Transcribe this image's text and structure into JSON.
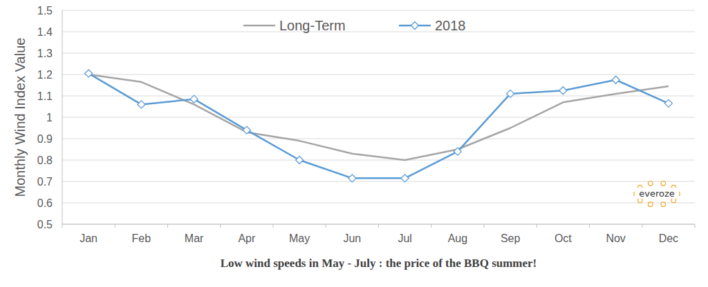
{
  "chart_data": {
    "type": "line",
    "x_label": "Low wind speeds in May - July : the price of the BBQ summer!",
    "y_label": "Monthly Wind Index Value",
    "categories": [
      "Jan",
      "Feb",
      "Mar",
      "Apr",
      "May",
      "Jun",
      "Jul",
      "Aug",
      "Sep",
      "Oct",
      "Nov",
      "Dec"
    ],
    "series": [
      {
        "name": "Long-Term",
        "color": "#a5a5a5",
        "marker": "none",
        "line_style": "solid",
        "values": [
          1.2,
          1.165,
          1.06,
          0.93,
          0.89,
          0.83,
          0.8,
          0.85,
          0.95,
          1.07,
          1.11,
          1.145
        ]
      },
      {
        "name": "2018",
        "color": "#5b9bd5",
        "marker": "diamond",
        "line_style": "solid",
        "values": [
          1.205,
          1.06,
          1.085,
          0.94,
          0.8,
          0.715,
          0.715,
          0.84,
          1.11,
          1.125,
          1.175,
          1.065
        ]
      }
    ],
    "ylim": [
      0.5,
      1.5
    ],
    "yticks": [
      0.5,
      0.6,
      0.7,
      0.8,
      0.9,
      1,
      1.1,
      1.2,
      1.3,
      1.4,
      1.5
    ],
    "grid": true,
    "legend": "top"
  },
  "logo": {
    "text": "everoze"
  }
}
